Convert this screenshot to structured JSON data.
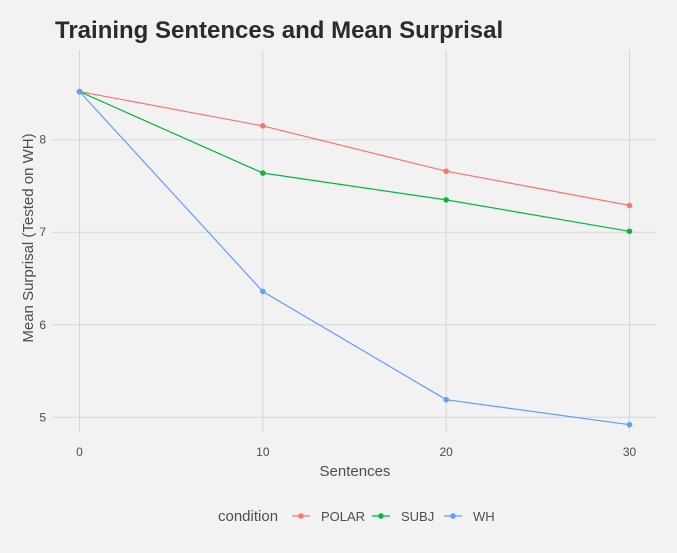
{
  "chart_data": {
    "type": "line",
    "title": "Training Sentences and Mean Surprisal",
    "xlabel": "Sentences",
    "ylabel": "Mean Surprisal (Tested on WH)",
    "x": [
      0,
      10,
      20,
      30
    ],
    "x_ticks": [
      "0",
      "10",
      "20",
      "30"
    ],
    "y_ticks": [
      "5",
      "6",
      "7",
      "8"
    ],
    "xlim": [
      -1.5,
      31.5
    ],
    "ylim": [
      4.83,
      8.97
    ],
    "grid": true,
    "legend_title": "condition",
    "legend_position": "bottom",
    "series": [
      {
        "name": "POLAR",
        "color": "#F8766D",
        "values": [
          8.52,
          8.15,
          7.66,
          7.29
        ]
      },
      {
        "name": "SUBJ",
        "color": "#00BA38",
        "values": [
          8.52,
          7.64,
          7.35,
          7.01
        ]
      },
      {
        "name": "WH",
        "color": "#619CFF",
        "values": [
          8.52,
          6.36,
          5.19,
          4.92
        ]
      }
    ]
  }
}
